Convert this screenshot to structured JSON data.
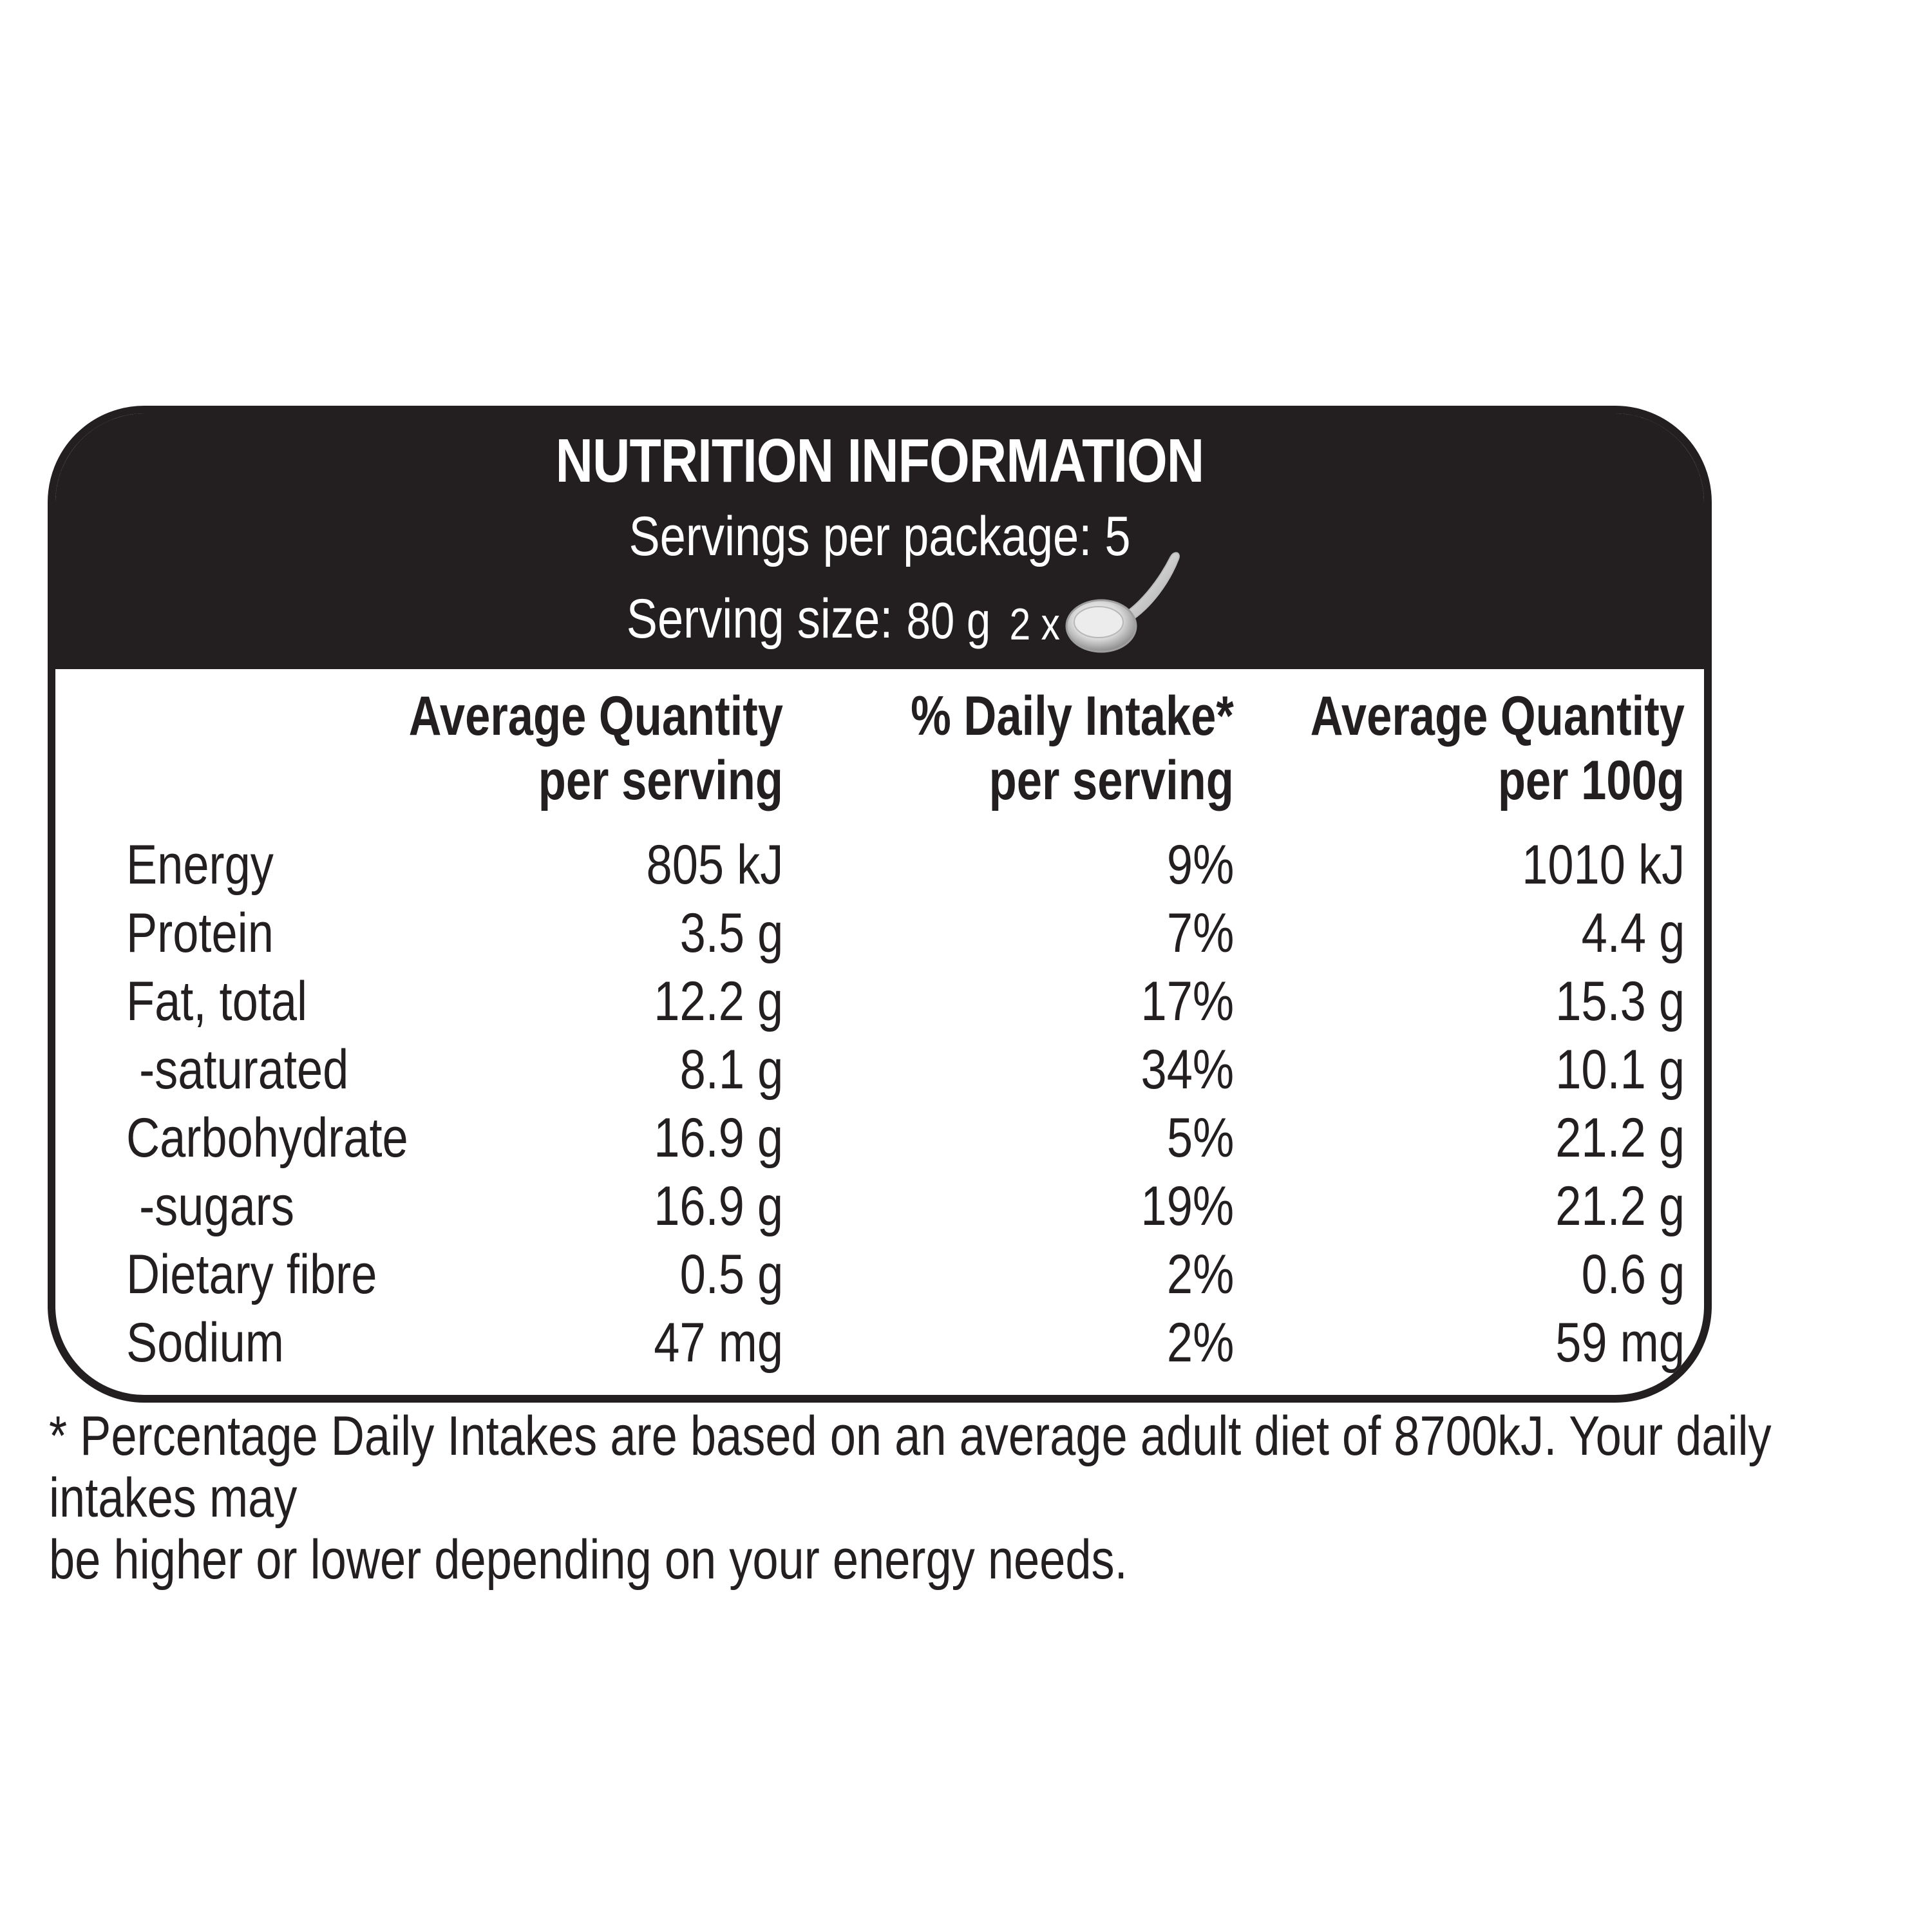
{
  "panel": {
    "title": "NUTRITION INFORMATION",
    "servings_per_package": "Servings per package: 5",
    "serving_size_label": "Serving size:",
    "serving_size_value": "80 g",
    "serving_size_multiplier": "2 x",
    "serving_icon": "scoop-icon"
  },
  "columns": {
    "per_serving": [
      "Average Quantity",
      "per serving"
    ],
    "daily_intake": [
      "% Daily Intake*",
      "per serving"
    ],
    "per_100g": [
      "Average Quantity",
      "per 100g"
    ]
  },
  "rows": [
    {
      "label": "Energy",
      "per_serving": "805 kJ",
      "daily_intake": "9%",
      "per_100g": "1010 kJ"
    },
    {
      "label": "Protein",
      "per_serving": "3.5 g",
      "daily_intake": "7%",
      "per_100g": "4.4 g"
    },
    {
      "label": "Fat, total",
      "per_serving": "12.2 g",
      "daily_intake": "17%",
      "per_100g": "15.3 g"
    },
    {
      "label": " -saturated",
      "per_serving": "8.1 g",
      "daily_intake": "34%",
      "per_100g": "10.1 g"
    },
    {
      "label": "Carbohydrate",
      "per_serving": "16.9 g",
      "daily_intake": "5%",
      "per_100g": "21.2 g"
    },
    {
      "label": " -sugars",
      "per_serving": "16.9 g",
      "daily_intake": "19%",
      "per_100g": "21.2 g"
    },
    {
      "label": "Dietary fibre",
      "per_serving": "0.5 g",
      "daily_intake": "2%",
      "per_100g": "0.6 g"
    },
    {
      "label": "Sodium",
      "per_serving": "47 mg",
      "daily_intake": "2%",
      "per_100g": "59 mg"
    }
  ],
  "footnote": [
    "* Percentage Daily Intakes are based on an average adult diet of 8700kJ. Your daily intakes may",
    "be higher or lower depending on your energy needs."
  ],
  "colors": {
    "ink": "#231f20",
    "background": "#ffffff"
  }
}
